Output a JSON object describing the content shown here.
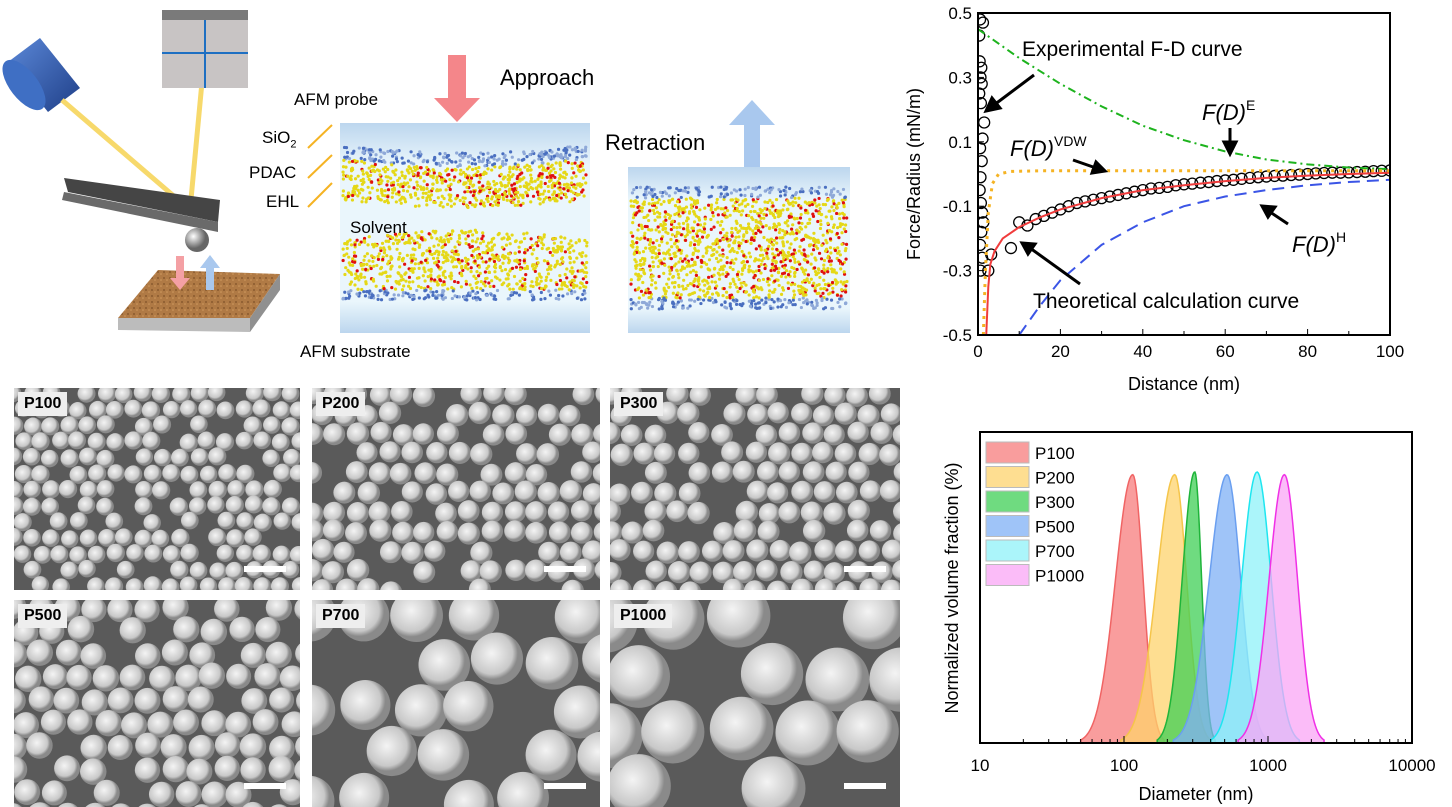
{
  "schematic": {
    "labels": {
      "afm_probe": "AFM probe",
      "sio2": "SiO",
      "sio2_sub": "2",
      "pdac": "PDAC",
      "ehl": "EHL",
      "solvent": "Solvent",
      "afm_substrate": "AFM substrate",
      "approach": "Approach",
      "retraction": "Retraction"
    },
    "colors": {
      "approach_arrow": "#f4868a",
      "retraction_arrow": "#a9c8ee",
      "laser": "#f7d96b",
      "laser_source": "#3f6fc4",
      "substrate": "#b07a45"
    }
  },
  "sem_panels": [
    {
      "label": "P100"
    },
    {
      "label": "P200"
    },
    {
      "label": "P300"
    },
    {
      "label": "P500"
    },
    {
      "label": "P700"
    },
    {
      "label": "P1000"
    }
  ],
  "chart_data": [
    {
      "type": "line",
      "xlabel": "Distance (nm)",
      "ylabel": "Force/Radius (mN/m)",
      "xlim": [
        0,
        100
      ],
      "ylim": [
        -0.5,
        0.5
      ],
      "xticks": [
        "0",
        "20",
        "40",
        "60",
        "80",
        "100"
      ],
      "yticks": [
        "-0.5",
        "-0.3",
        "-0.1",
        "0.1",
        "0.3",
        "0.5"
      ],
      "grid": false,
      "annotations": {
        "experimental": "Experimental  F-D curve",
        "theoretical": "Theoretical  calculation  curve",
        "fde_main": "F(D)",
        "fde_sup": "E",
        "fdvdw_main": "F(D)",
        "fdvdw_sup": "VDW",
        "fdh_main": "F(D)",
        "fdh_sup": "H"
      },
      "series": [
        {
          "key": "experimental",
          "style": "open-circles",
          "color": "#000000",
          "points": [
            [
              0.5,
              0.48
            ],
            [
              1.2,
              0.47
            ],
            [
              0.3,
              0.43
            ],
            [
              0.4,
              0.35
            ],
            [
              0.8,
              0.33
            ],
            [
              0.6,
              0.3
            ],
            [
              0.9,
              0.28
            ],
            [
              0.3,
              0.25
            ],
            [
              0.7,
              0.22
            ],
            [
              1.5,
              0.16
            ],
            [
              1.1,
              0.11
            ],
            [
              0.5,
              0.08
            ],
            [
              0.9,
              0.04
            ],
            [
              0.6,
              -0.01
            ],
            [
              0.4,
              -0.05
            ],
            [
              0.7,
              -0.09
            ],
            [
              1.0,
              -0.12
            ],
            [
              1.3,
              -0.15
            ],
            [
              0.8,
              -0.18
            ],
            [
              0.5,
              -0.22
            ],
            [
              1.0,
              -0.26
            ],
            [
              0.6,
              -0.3
            ],
            [
              2.5,
              -0.3
            ],
            [
              3.2,
              -0.25
            ],
            [
              8,
              -0.23
            ],
            [
              10,
              -0.15
            ],
            [
              12,
              -0.16
            ],
            [
              14,
              -0.14
            ],
            [
              16,
              -0.13
            ],
            [
              18,
              -0.12
            ],
            [
              20,
              -0.11
            ],
            [
              22,
              -0.1
            ],
            [
              24,
              -0.09
            ],
            [
              26,
              -0.085
            ],
            [
              28,
              -0.08
            ],
            [
              30,
              -0.075
            ],
            [
              32,
              -0.07
            ],
            [
              34,
              -0.065
            ],
            [
              36,
              -0.06
            ],
            [
              38,
              -0.055
            ],
            [
              40,
              -0.05
            ],
            [
              42,
              -0.045
            ],
            [
              44,
              -0.043
            ],
            [
              46,
              -0.04
            ],
            [
              48,
              -0.035
            ],
            [
              50,
              -0.032
            ],
            [
              52,
              -0.03
            ],
            [
              54,
              -0.027
            ],
            [
              56,
              -0.025
            ],
            [
              58,
              -0.022
            ],
            [
              60,
              -0.02
            ],
            [
              62,
              -0.018
            ],
            [
              64,
              -0.015
            ],
            [
              66,
              -0.012
            ],
            [
              68,
              -0.01
            ],
            [
              70,
              -0.008
            ],
            [
              72,
              -0.006
            ],
            [
              74,
              -0.005
            ],
            [
              76,
              -0.003
            ],
            [
              78,
              -0.002
            ],
            [
              80,
              0.0
            ],
            [
              82,
              0.002
            ],
            [
              84,
              0.003
            ],
            [
              86,
              0.004
            ],
            [
              88,
              0.004
            ],
            [
              90,
              0.005
            ],
            [
              92,
              0.006
            ],
            [
              94,
              0.007
            ],
            [
              96,
              0.009
            ],
            [
              98,
              0.01
            ],
            [
              100,
              0.011
            ]
          ]
        },
        {
          "key": "theoretical",
          "style": "solid",
          "color": "#f03c3c",
          "points": [
            [
              2,
              -0.5
            ],
            [
              2.5,
              -0.35
            ],
            [
              3,
              -0.28
            ],
            [
              4,
              -0.24
            ],
            [
              6,
              -0.2
            ],
            [
              10,
              -0.165
            ],
            [
              15,
              -0.135
            ],
            [
              20,
              -0.11
            ],
            [
              30,
              -0.075
            ],
            [
              40,
              -0.05
            ],
            [
              50,
              -0.035
            ],
            [
              60,
              -0.022
            ],
            [
              70,
              -0.012
            ],
            [
              80,
              -0.005
            ],
            [
              90,
              0.0
            ],
            [
              100,
              0.004
            ]
          ]
        },
        {
          "key": "fde",
          "style": "dash-dot",
          "color": "#1db31d",
          "points": [
            [
              0,
              0.45
            ],
            [
              10,
              0.36
            ],
            [
              20,
              0.28
            ],
            [
              30,
              0.21
            ],
            [
              40,
              0.15
            ],
            [
              50,
              0.105
            ],
            [
              60,
              0.07
            ],
            [
              70,
              0.045
            ],
            [
              80,
              0.03
            ],
            [
              90,
              0.02
            ],
            [
              100,
              0.015
            ]
          ]
        },
        {
          "key": "fdvdw",
          "style": "dotted",
          "color": "#f5b323",
          "points": [
            [
              1.3,
              -0.5
            ],
            [
              1.8,
              -0.3
            ],
            [
              2.5,
              -0.12
            ],
            [
              3.5,
              -0.03
            ],
            [
              5,
              0.0
            ],
            [
              8,
              0.008
            ],
            [
              15,
              0.01
            ],
            [
              30,
              0.01
            ],
            [
              60,
              0.01
            ],
            [
              100,
              0.01
            ]
          ]
        },
        {
          "key": "fdh",
          "style": "dashed",
          "color": "#3b55e6",
          "points": [
            [
              10,
              -0.5
            ],
            [
              15,
              -0.41
            ],
            [
              20,
              -0.33
            ],
            [
              30,
              -0.22
            ],
            [
              40,
              -0.15
            ],
            [
              50,
              -0.1
            ],
            [
              60,
              -0.07
            ],
            [
              70,
              -0.05
            ],
            [
              80,
              -0.035
            ],
            [
              90,
              -0.025
            ],
            [
              100,
              -0.018
            ]
          ]
        }
      ]
    },
    {
      "type": "area",
      "xlabel": "Diameter (nm)",
      "ylabel": "Normalized volume fraction (%)",
      "xscale": "log",
      "xlim": [
        10,
        10000
      ],
      "xticks": [
        "10",
        "100",
        "1000",
        "10000"
      ],
      "grid": false,
      "legend": "top-left",
      "series": [
        {
          "name": "P100",
          "mode_nm": 115,
          "range_nm": [
            50,
            190
          ],
          "peak": 0.99,
          "color": "#f77c7c",
          "edge": "#f06464"
        },
        {
          "name": "P200",
          "mode_nm": 225,
          "range_nm": [
            95,
            400
          ],
          "peak": 0.99,
          "color": "#fdd36c",
          "edge": "#f5c54a"
        },
        {
          "name": "P300",
          "mode_nm": 310,
          "range_nm": [
            170,
            430
          ],
          "peak": 1.0,
          "color": "#3fcf55",
          "edge": "#1fb43a"
        },
        {
          "name": "P500",
          "mode_nm": 520,
          "range_nm": [
            220,
            1000
          ],
          "peak": 0.99,
          "color": "#7fb0f5",
          "edge": "#6a9ff0"
        },
        {
          "name": "P700",
          "mode_nm": 840,
          "range_nm": [
            400,
            1650
          ],
          "peak": 1.0,
          "color": "#8ff2f8",
          "edge": "#1ee6f0"
        },
        {
          "name": "P1000",
          "mode_nm": 1300,
          "range_nm": [
            620,
            2450
          ],
          "peak": 0.99,
          "color": "#f9a6f5",
          "edge": "#f030e6"
        }
      ]
    }
  ]
}
